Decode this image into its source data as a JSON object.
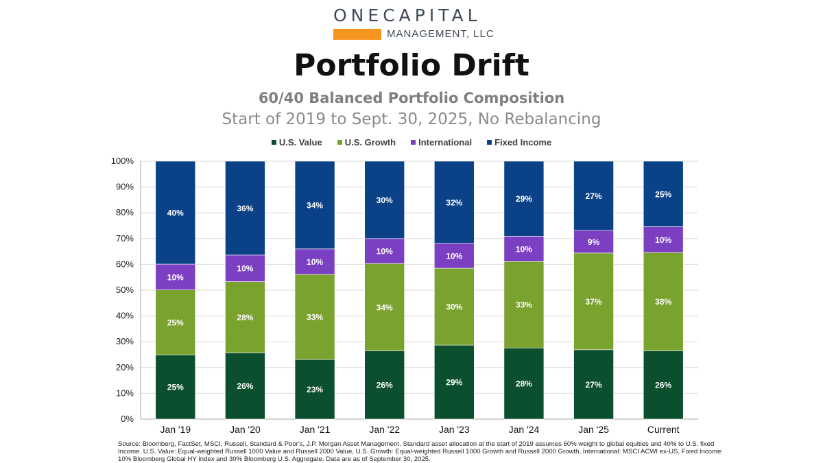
{
  "logo": {
    "name_part1": "ONE",
    "name_part2": "CAPITAL",
    "subtitle": "MANAGEMENT, LLC",
    "accent_color": "#f7941d"
  },
  "header": {
    "title": "Portfolio Drift",
    "subtitle": "60/40 Balanced Portfolio Composition",
    "subtitle2": "Start of 2019 to Sept. 30, 2025, No Rebalancing"
  },
  "chart_data": {
    "type": "bar",
    "stacked": true,
    "categories": [
      "Jan '19",
      "Jan '20",
      "Jan '21",
      "Jan '22",
      "Jan '23",
      "Jan '24",
      "Jan '25",
      "Current"
    ],
    "series": [
      {
        "name": "U.S. Value",
        "color": "#0b4f2e",
        "values": [
          25,
          26,
          23,
          26,
          29,
          28,
          27,
          26
        ],
        "labels": [
          "25%",
          "26%",
          "23%",
          "26%",
          "29%",
          "28%",
          "27%",
          "26%"
        ]
      },
      {
        "name": "U.S. Growth",
        "color": "#7aa22f",
        "values": [
          25,
          28,
          33,
          34,
          30,
          33,
          37,
          38
        ],
        "labels": [
          "25%",
          "28%",
          "33%",
          "34%",
          "30%",
          "33%",
          "37%",
          "38%"
        ]
      },
      {
        "name": "International",
        "color": "#7b3fc2",
        "values": [
          10,
          10,
          10,
          10,
          10,
          10,
          9,
          10
        ],
        "labels": [
          "10%",
          "10%",
          "10%",
          "10%",
          "10%",
          "10%",
          "9%",
          "10%"
        ]
      },
      {
        "name": "Fixed Income",
        "color": "#0b4287",
        "values": [
          40,
          36,
          34,
          30,
          32,
          29,
          27,
          25
        ],
        "labels": [
          "40%",
          "36%",
          "34%",
          "30%",
          "32%",
          "29%",
          "27%",
          "25%"
        ]
      }
    ],
    "bar_tops": [
      [
        24.9,
        50.1,
        60.1,
        100
      ],
      [
        25.7,
        53.3,
        63.6,
        100
      ],
      [
        23.1,
        56.1,
        66.0,
        100
      ],
      [
        26.5,
        60.3,
        70.0,
        100
      ],
      [
        28.7,
        58.5,
        68.2,
        100
      ],
      [
        27.6,
        61.1,
        70.9,
        100
      ],
      [
        26.9,
        64.4,
        73.2,
        100
      ],
      [
        26.5,
        64.6,
        74.6,
        100
      ]
    ],
    "ylim": [
      0,
      100
    ],
    "yticks": [
      0,
      10,
      20,
      30,
      40,
      50,
      60,
      70,
      80,
      90,
      100
    ],
    "ytick_labels": [
      "0%",
      "10%",
      "20%",
      "30%",
      "40%",
      "50%",
      "60%",
      "70%",
      "80%",
      "90%",
      "100%"
    ],
    "grid": true,
    "legend": "top-center"
  },
  "footer": {
    "source": "Source: Bloomberg, FactSet, MSCI, Russell, Standard & Poor's, J.P. Morgan Asset Management.  Standard asset allocation at the start of 2019 assumes 60% weight to global equities and 40% to U.S. fixed Income.  U.S. Value: Equal-weighted Russell 1000 Value and Russell 2000 Value, U.S. Growth: Equal-weighted Russell 1000 Growth and Russell 2000 Growth, International: MSCI ACWI ex-US, Fixed Income: 10% Bloomberg Global HY Index and 30% Bloomberg U.S. Aggregate.  Data are as of September 30, 2025."
  }
}
